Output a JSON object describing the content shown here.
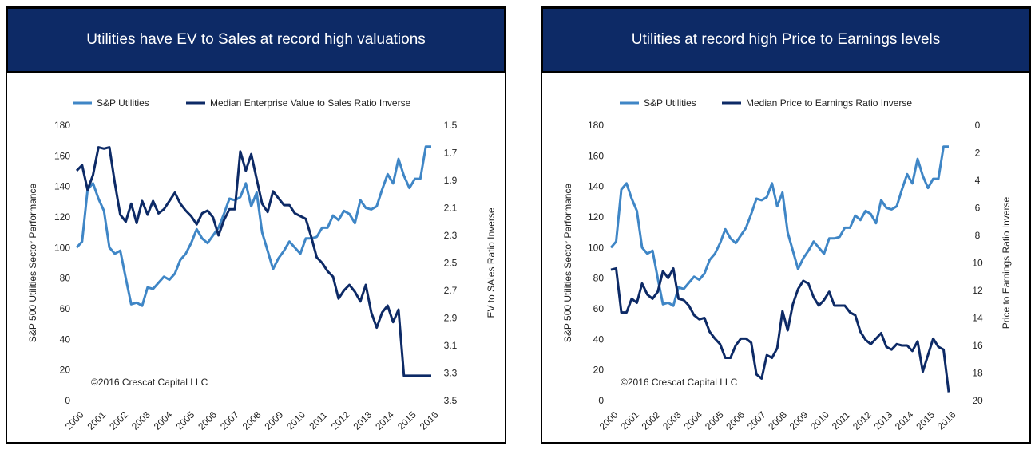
{
  "colors": {
    "banner": "#0d2a66",
    "sp_utilities": "#3f86c6",
    "inverse_ratio": "#0d2a66"
  },
  "chart_data": [
    {
      "type": "line",
      "title": "Utilities have EV to Sales at record high valuations",
      "ylabel": "S&P 500 Utilities Sector Performance",
      "y2label": "EV to SAles Ratio Inverse",
      "copyright": "©2016 Crescat Capital LLC",
      "x_ticks": [
        "2000",
        "2001",
        "2002",
        "2003",
        "2004",
        "2005",
        "2006",
        "2007",
        "2008",
        "2009",
        "2010",
        "2011",
        "2012",
        "2013",
        "2014",
        "2015",
        "2016"
      ],
      "y_ticks": [
        "180",
        "160",
        "140",
        "120",
        "100",
        "80",
        "60",
        "40",
        "20",
        "0"
      ],
      "y2_ticks": [
        "1.5",
        "1.7",
        "1.9",
        "2.1",
        "2.3",
        "2.5",
        "2.7",
        "2.9",
        "3.1",
        "3.3",
        "3.5"
      ],
      "ylim": [
        0,
        180
      ],
      "y2lim": [
        1.5,
        3.5
      ],
      "y2_inverted": true,
      "xlim": [
        2000,
        2016.25
      ],
      "grid": false,
      "legend": "top",
      "series": [
        {
          "name": "S&P Utilities",
          "axis": "left",
          "x": [
            2000,
            2000.25,
            2000.5,
            2000.75,
            2001,
            2001.25,
            2001.5,
            2001.75,
            2002,
            2002.25,
            2002.5,
            2002.75,
            2003,
            2003.25,
            2003.5,
            2003.75,
            2004,
            2004.25,
            2004.5,
            2004.75,
            2005,
            2005.25,
            2005.5,
            2005.75,
            2006,
            2006.25,
            2006.5,
            2006.75,
            2007,
            2007.25,
            2007.5,
            2007.75,
            2008,
            2008.25,
            2008.5,
            2008.75,
            2009,
            2009.25,
            2009.5,
            2009.75,
            2010,
            2010.25,
            2010.5,
            2010.75,
            2011,
            2011.25,
            2011.5,
            2011.75,
            2012,
            2012.25,
            2012.5,
            2012.75,
            2013,
            2013.25,
            2013.5,
            2013.75,
            2014,
            2014.25,
            2014.5,
            2014.75,
            2015,
            2015.25,
            2015.5,
            2015.75,
            2016,
            2016.25
          ],
          "values": [
            100,
            104,
            138,
            142,
            132,
            124,
            100,
            96,
            98,
            80,
            63,
            64,
            62,
            74,
            73,
            77,
            81,
            79,
            83,
            92,
            96,
            103,
            112,
            106,
            103,
            108,
            113,
            122,
            132,
            131,
            133,
            142,
            127,
            136,
            110,
            98,
            86,
            93,
            98,
            104,
            100,
            96,
            106,
            106,
            107,
            113,
            113,
            121,
            118,
            124,
            122,
            116,
            131,
            126,
            125,
            127,
            138,
            148,
            142,
            158,
            147,
            139,
            145,
            145,
            166,
            166
          ]
        },
        {
          "name": "Median Enterprise Value to Sales Ratio Inverse",
          "axis": "right",
          "x": [
            2000,
            2000.25,
            2000.5,
            2000.75,
            2001,
            2001.25,
            2001.5,
            2001.75,
            2002,
            2002.25,
            2002.5,
            2002.75,
            2003,
            2003.25,
            2003.5,
            2003.75,
            2004,
            2004.25,
            2004.5,
            2004.75,
            2005,
            2005.25,
            2005.5,
            2005.75,
            2006,
            2006.25,
            2006.5,
            2006.75,
            2007,
            2007.25,
            2007.5,
            2007.75,
            2008,
            2008.25,
            2008.5,
            2008.75,
            2009,
            2009.25,
            2009.5,
            2009.75,
            2010,
            2010.25,
            2010.5,
            2010.75,
            2011,
            2011.25,
            2011.5,
            2011.75,
            2012,
            2012.25,
            2012.5,
            2012.75,
            2013,
            2013.25,
            2013.5,
            2013.75,
            2014,
            2014.25,
            2014.5,
            2014.75,
            2015,
            2015.25,
            2015.5,
            2015.75,
            2016,
            2016.25
          ],
          "values": [
            1.83,
            1.79,
            1.97,
            1.86,
            1.66,
            1.67,
            1.66,
            1.92,
            2.15,
            2.2,
            2.07,
            2.21,
            2.05,
            2.15,
            2.05,
            2.14,
            2.11,
            2.05,
            1.99,
            2.07,
            2.12,
            2.16,
            2.22,
            2.14,
            2.12,
            2.17,
            2.3,
            2.19,
            2.11,
            2.11,
            1.69,
            1.83,
            1.71,
            1.89,
            2.07,
            2.13,
            1.98,
            2.03,
            2.08,
            2.08,
            2.14,
            2.16,
            2.18,
            2.31,
            2.46,
            2.5,
            2.56,
            2.6,
            2.76,
            2.7,
            2.66,
            2.71,
            2.78,
            2.66,
            2.86,
            2.97,
            2.86,
            2.81,
            2.93,
            2.84,
            3.32,
            3.32,
            3.32,
            3.32,
            3.32,
            3.32
          ]
        }
      ]
    },
    {
      "type": "line",
      "title": "Utilities at record high Price to Earnings levels",
      "ylabel": "S&P 500 Utilities Sector Performance",
      "y2label": "Price to Earnings Ratio Inverse",
      "copyright": "©2016 Crescat Capital LLC",
      "x_ticks": [
        "2000",
        "2001",
        "2002",
        "2003",
        "2004",
        "2005",
        "2006",
        "2007",
        "2008",
        "2009",
        "2010",
        "2011",
        "2012",
        "2013",
        "2014",
        "2015",
        "2016"
      ],
      "y_ticks": [
        "180",
        "160",
        "140",
        "120",
        "100",
        "80",
        "60",
        "40",
        "20",
        "0"
      ],
      "y2_ticks": [
        "0",
        "2",
        "4",
        "6",
        "8",
        "10",
        "12",
        "14",
        "16",
        "18",
        "20"
      ],
      "ylim": [
        0,
        180
      ],
      "y2lim": [
        0,
        20
      ],
      "y2_inverted": true,
      "xlim": [
        2000,
        2016.25
      ],
      "grid": false,
      "legend": "top",
      "series": [
        {
          "name": "S&P Utilities",
          "axis": "left",
          "x": [
            2000,
            2000.25,
            2000.5,
            2000.75,
            2001,
            2001.25,
            2001.5,
            2001.75,
            2002,
            2002.25,
            2002.5,
            2002.75,
            2003,
            2003.25,
            2003.5,
            2003.75,
            2004,
            2004.25,
            2004.5,
            2004.75,
            2005,
            2005.25,
            2005.5,
            2005.75,
            2006,
            2006.25,
            2006.5,
            2006.75,
            2007,
            2007.25,
            2007.5,
            2007.75,
            2008,
            2008.25,
            2008.5,
            2008.75,
            2009,
            2009.25,
            2009.5,
            2009.75,
            2010,
            2010.25,
            2010.5,
            2010.75,
            2011,
            2011.25,
            2011.5,
            2011.75,
            2012,
            2012.25,
            2012.5,
            2012.75,
            2013,
            2013.25,
            2013.5,
            2013.75,
            2014,
            2014.25,
            2014.5,
            2014.75,
            2015,
            2015.25,
            2015.5,
            2015.75,
            2016,
            2016.25
          ],
          "values": [
            100,
            104,
            138,
            142,
            132,
            124,
            100,
            96,
            98,
            80,
            63,
            64,
            62,
            74,
            73,
            77,
            81,
            79,
            83,
            92,
            96,
            103,
            112,
            106,
            103,
            108,
            113,
            122,
            132,
            131,
            133,
            142,
            127,
            136,
            110,
            98,
            86,
            93,
            98,
            104,
            100,
            96,
            106,
            106,
            107,
            113,
            113,
            121,
            118,
            124,
            122,
            116,
            131,
            126,
            125,
            127,
            138,
            148,
            142,
            158,
            147,
            139,
            145,
            145,
            166,
            166
          ]
        },
        {
          "name": "Median Price to Earnings Ratio Inverse",
          "axis": "right",
          "x": [
            2000,
            2000.25,
            2000.5,
            2000.75,
            2001,
            2001.25,
            2001.5,
            2001.75,
            2002,
            2002.25,
            2002.5,
            2002.75,
            2003,
            2003.25,
            2003.5,
            2003.75,
            2004,
            2004.25,
            2004.5,
            2004.75,
            2005,
            2005.25,
            2005.5,
            2005.75,
            2006,
            2006.25,
            2006.5,
            2006.75,
            2007,
            2007.25,
            2007.5,
            2007.75,
            2008,
            2008.25,
            2008.5,
            2008.75,
            2009,
            2009.25,
            2009.5,
            2009.75,
            2010,
            2010.25,
            2010.5,
            2010.75,
            2011,
            2011.25,
            2011.5,
            2011.75,
            2012,
            2012.25,
            2012.5,
            2012.75,
            2013,
            2013.25,
            2013.5,
            2013.75,
            2014,
            2014.25,
            2014.5,
            2014.75,
            2015,
            2015.25,
            2015.5,
            2015.75,
            2016,
            2016.25
          ],
          "values": [
            10.5,
            10.4,
            13.6,
            13.6,
            12.6,
            12.9,
            11.5,
            12.3,
            12.6,
            12.1,
            10.6,
            11.1,
            10.4,
            12.6,
            12.7,
            13.1,
            13.8,
            14.1,
            14.0,
            15.0,
            15.5,
            15.9,
            16.9,
            16.9,
            16.0,
            15.5,
            15.5,
            15.8,
            18.1,
            18.4,
            16.7,
            16.9,
            16.2,
            13.5,
            14.9,
            13.0,
            11.9,
            11.3,
            11.5,
            12.5,
            13.1,
            12.7,
            12.1,
            13.1,
            13.1,
            13.1,
            13.6,
            13.8,
            15.0,
            15.6,
            15.9,
            15.5,
            15.1,
            16.1,
            16.3,
            15.9,
            16.0,
            16.0,
            16.4,
            15.7,
            17.9,
            16.7,
            15.5,
            16.1,
            16.3,
            19.4
          ]
        }
      ]
    }
  ]
}
